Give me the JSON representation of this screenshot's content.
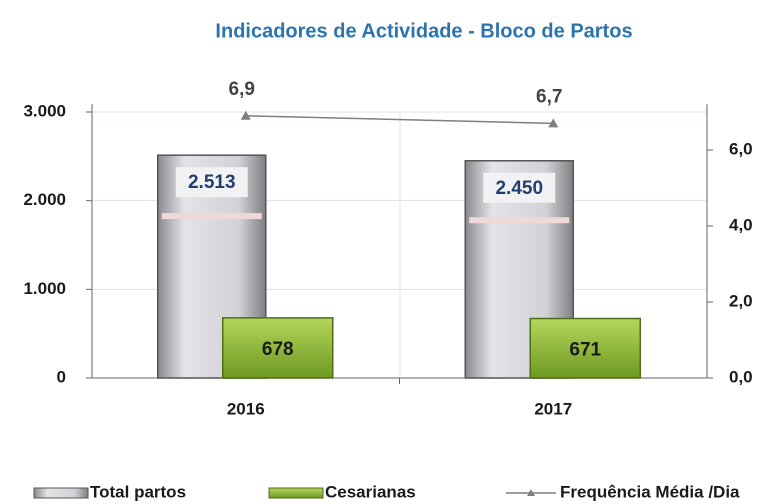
{
  "chart_data": {
    "type": "bar",
    "title": "Indicadores de Actividade - Bloco de Partos",
    "categories": [
      "2016",
      "2017"
    ],
    "series": [
      {
        "name": "Total partos",
        "color": "#c4c4c8",
        "values": [
          2513,
          2450
        ],
        "value_labels": [
          "2.513",
          "2.450"
        ]
      },
      {
        "name": "Cesarianas",
        "color": "#8dba3a",
        "values": [
          678,
          671
        ]
      },
      {
        "name": "Frequência Média /Dia",
        "color": "#7f7f7f",
        "axis": "y2",
        "values": [
          6.9,
          6.7
        ],
        "value_labels": [
          "6,9",
          "6,7"
        ]
      }
    ],
    "ylim": [
      0,
      3000
    ],
    "yticks": [
      0,
      {
        "value": 1000,
        "label": "1.000"
      },
      {
        "value": 2000,
        "label": "2.000"
      },
      {
        "value": 3000,
        "label": "3.000"
      }
    ],
    "y2lim": [
      0,
      7
    ],
    "y2ticks": [
      {
        "value": 0,
        "label": "0,0"
      },
      {
        "value": 2,
        "label": "2,0"
      },
      {
        "value": 4,
        "label": "4,0"
      },
      {
        "value": 6,
        "label": "6,0"
      }
    ],
    "grid": true
  }
}
